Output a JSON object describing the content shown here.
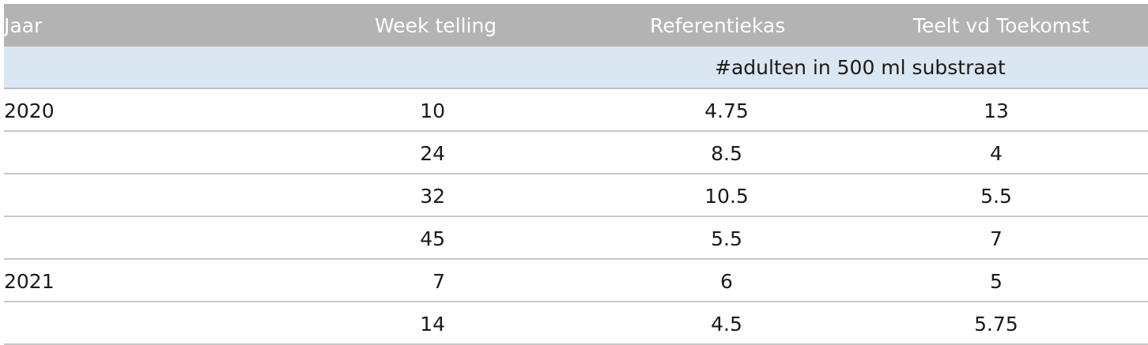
{
  "table": {
    "headers": {
      "jaar": "Jaar",
      "week": "Week telling",
      "referentiekas": "Referentiekas",
      "teelt": "Teelt vd Toekomst"
    },
    "unit_label": "#adulten in 500 ml substraat",
    "rows": [
      {
        "jaar": "2020",
        "week": "10",
        "referentiekas": "4.75",
        "teelt": "13"
      },
      {
        "jaar": "",
        "week": "24",
        "referentiekas": "8.5",
        "teelt": "4"
      },
      {
        "jaar": "",
        "week": "32",
        "referentiekas": "10.5",
        "teelt": "5.5"
      },
      {
        "jaar": "",
        "week": "45",
        "referentiekas": "5.5",
        "teelt": "7"
      },
      {
        "jaar": "2021",
        "week": "7",
        "referentiekas": "6",
        "teelt": "5"
      },
      {
        "jaar": "",
        "week": "14",
        "referentiekas": "4.5",
        "teelt": "5.75"
      }
    ]
  }
}
